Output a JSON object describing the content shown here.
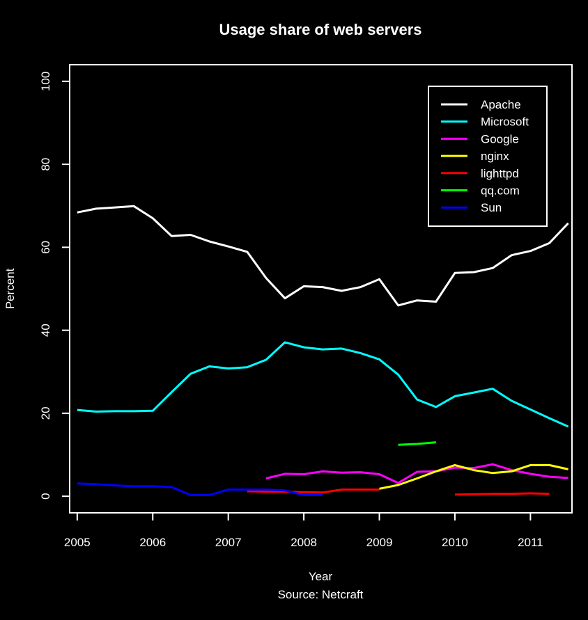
{
  "chart_data": {
    "type": "line",
    "title": "Usage share of web servers",
    "xlabel": "Year",
    "ylabel": "Percent",
    "caption": "Source:  Netcraft",
    "xlim": [
      2004.9,
      2011.55
    ],
    "ylim": [
      -4,
      104
    ],
    "x_ticks": [
      2005,
      2006,
      2007,
      2008,
      2009,
      2010,
      2011
    ],
    "x_tick_labels": [
      "2005",
      "2006",
      "2007",
      "2008",
      "2009",
      "2010",
      "2011"
    ],
    "y_ticks": [
      0,
      20,
      40,
      60,
      80,
      100
    ],
    "y_tick_labels": [
      "0",
      "20",
      "40",
      "60",
      "80",
      "100"
    ],
    "grid": false,
    "legend_position": "top-right",
    "series": [
      {
        "name": "Apache",
        "color": "#ffffff",
        "points": [
          [
            2005.0,
            68.4
          ],
          [
            2005.25,
            69.3
          ],
          [
            2005.5,
            69.6
          ],
          [
            2005.75,
            69.9
          ],
          [
            2006.0,
            67.0
          ],
          [
            2006.25,
            62.7
          ],
          [
            2006.5,
            63.0
          ],
          [
            2006.75,
            61.4
          ],
          [
            2007.0,
            60.2
          ],
          [
            2007.25,
            58.9
          ],
          [
            2007.5,
            52.6
          ],
          [
            2007.75,
            47.7
          ],
          [
            2008.0,
            50.6
          ],
          [
            2008.25,
            50.4
          ],
          [
            2008.5,
            49.5
          ],
          [
            2008.75,
            50.4
          ],
          [
            2009.0,
            52.3
          ],
          [
            2009.25,
            46.0
          ],
          [
            2009.5,
            47.2
          ],
          [
            2009.75,
            46.9
          ],
          [
            2010.0,
            53.8
          ],
          [
            2010.25,
            54.0
          ],
          [
            2010.5,
            55.0
          ],
          [
            2010.75,
            58.1
          ],
          [
            2011.0,
            59.1
          ],
          [
            2011.25,
            61.0
          ],
          [
            2011.5,
            65.8
          ]
        ]
      },
      {
        "name": "Microsoft",
        "color": "#00ffff",
        "points": [
          [
            2005.0,
            20.8
          ],
          [
            2005.25,
            20.4
          ],
          [
            2005.5,
            20.5
          ],
          [
            2005.75,
            20.5
          ],
          [
            2006.0,
            20.6
          ],
          [
            2006.25,
            25.1
          ],
          [
            2006.5,
            29.5
          ],
          [
            2006.75,
            31.3
          ],
          [
            2007.0,
            30.8
          ],
          [
            2007.25,
            31.1
          ],
          [
            2007.5,
            32.9
          ],
          [
            2007.75,
            37.1
          ],
          [
            2008.0,
            35.9
          ],
          [
            2008.25,
            35.4
          ],
          [
            2008.5,
            35.6
          ],
          [
            2008.75,
            34.5
          ],
          [
            2009.0,
            33.0
          ],
          [
            2009.25,
            29.3
          ],
          [
            2009.5,
            23.3
          ],
          [
            2009.75,
            21.5
          ],
          [
            2010.0,
            24.1
          ],
          [
            2010.25,
            25.0
          ],
          [
            2010.5,
            25.9
          ],
          [
            2010.75,
            23.0
          ],
          [
            2011.0,
            20.9
          ],
          [
            2011.25,
            18.8
          ],
          [
            2011.5,
            16.8
          ]
        ]
      },
      {
        "name": "Google",
        "color": "#ff00ff",
        "points": [
          [
            2007.5,
            4.3
          ],
          [
            2007.75,
            5.4
          ],
          [
            2008.0,
            5.3
          ],
          [
            2008.25,
            6.0
          ],
          [
            2008.5,
            5.7
          ],
          [
            2008.75,
            5.8
          ],
          [
            2009.0,
            5.3
          ],
          [
            2009.25,
            3.2
          ],
          [
            2009.5,
            5.9
          ],
          [
            2009.75,
            6.0
          ],
          [
            2010.0,
            6.9
          ],
          [
            2010.25,
            6.8
          ],
          [
            2010.5,
            7.7
          ],
          [
            2010.75,
            6.3
          ],
          [
            2011.0,
            5.4
          ],
          [
            2011.25,
            4.7
          ],
          [
            2011.5,
            4.4
          ]
        ]
      },
      {
        "name": "nginx",
        "color": "#ffff00",
        "points": [
          [
            2009.0,
            1.8
          ],
          [
            2009.25,
            2.7
          ],
          [
            2009.5,
            4.3
          ],
          [
            2009.75,
            6.0
          ],
          [
            2010.0,
            7.5
          ],
          [
            2010.25,
            6.3
          ],
          [
            2010.5,
            5.6
          ],
          [
            2010.75,
            6.0
          ],
          [
            2011.0,
            7.5
          ],
          [
            2011.25,
            7.5
          ],
          [
            2011.5,
            6.5
          ]
        ]
      },
      {
        "name": "lighttpd",
        "color": "#ff0000",
        "points": [
          [
            2007.25,
            1.2
          ],
          [
            2007.5,
            1.1
          ],
          [
            2007.75,
            1.1
          ],
          [
            2008.0,
            1.0
          ],
          [
            2008.25,
            0.9
          ],
          [
            2008.5,
            1.6
          ],
          [
            2008.75,
            1.6
          ],
          [
            2009.0,
            1.6
          ],
          [
            null,
            null
          ],
          [
            2010.0,
            0.4
          ],
          [
            2010.25,
            0.5
          ],
          [
            2010.5,
            0.6
          ],
          [
            2010.75,
            0.6
          ],
          [
            2011.0,
            0.7
          ],
          [
            2011.25,
            0.6
          ]
        ]
      },
      {
        "name": "qq.com",
        "color": "#00ff00",
        "points": [
          [
            2009.25,
            12.4
          ],
          [
            2009.5,
            12.6
          ],
          [
            2009.75,
            13.0
          ]
        ]
      },
      {
        "name": "Sun",
        "color": "#0000ff",
        "points": [
          [
            2005.0,
            3.1
          ],
          [
            2005.25,
            2.9
          ],
          [
            2005.5,
            2.6
          ],
          [
            2005.75,
            2.4
          ],
          [
            2006.0,
            2.4
          ],
          [
            2006.25,
            2.2
          ],
          [
            2006.5,
            0.3
          ],
          [
            2006.75,
            0.3
          ],
          [
            2007.0,
            1.6
          ],
          [
            2007.25,
            1.6
          ],
          [
            2007.5,
            1.6
          ],
          [
            2007.75,
            1.4
          ],
          [
            2008.0,
            0.3
          ],
          [
            2008.25,
            0.3
          ]
        ]
      }
    ]
  }
}
